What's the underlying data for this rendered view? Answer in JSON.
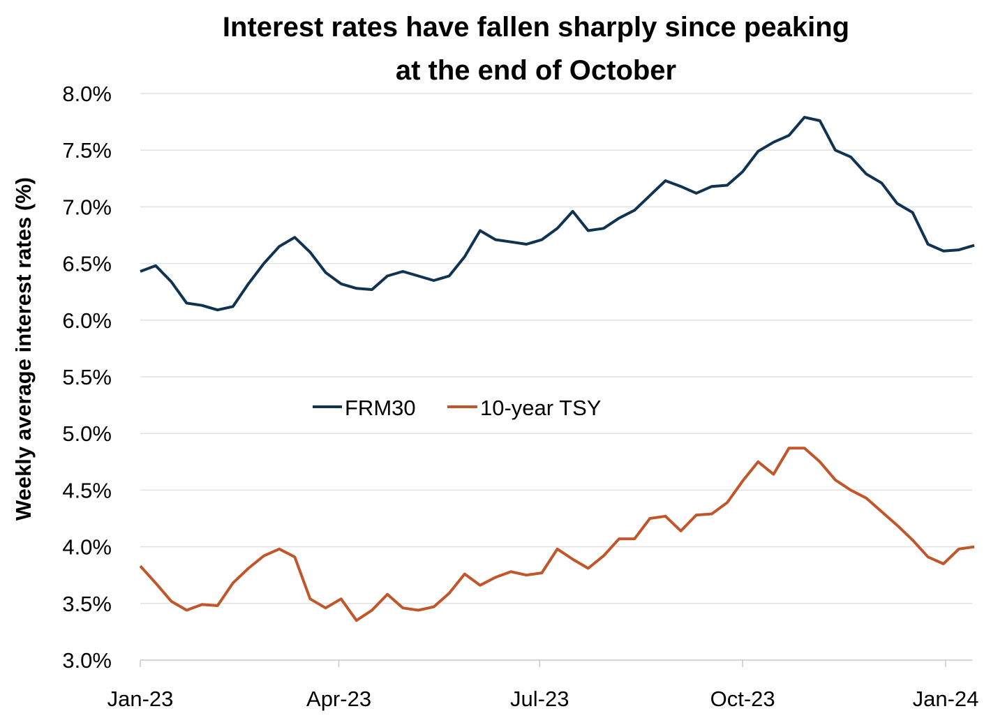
{
  "chart_data": {
    "type": "line",
    "title": [
      "Interest rates have fallen sharply since peaking",
      "at the end of October"
    ],
    "xlabel": "",
    "ylabel": "Weekly average interest rates (%)",
    "ylim": [
      3.0,
      8.0
    ],
    "yticks": [
      3.0,
      3.5,
      4.0,
      4.5,
      5.0,
      5.5,
      6.0,
      6.5,
      7.0,
      7.5,
      8.0
    ],
    "ytick_labels": [
      "3.0%",
      "3.5%",
      "4.0%",
      "4.5%",
      "5.0%",
      "5.5%",
      "6.0%",
      "6.5%",
      "7.0%",
      "7.5%",
      "8.0%"
    ],
    "x_unit": "days since 2023-01-01",
    "xlim": [
      0,
      384
    ],
    "xticks": [
      0,
      90,
      181,
      273,
      365
    ],
    "xtick_labels": [
      "Jan-23",
      "Apr-23",
      "Jul-23",
      "Oct-23",
      "Jan-24"
    ],
    "x_step_days": 7,
    "grid": "horizontal",
    "legend_position": "center",
    "series": [
      {
        "name": "FRM30",
        "color": "#0f3350",
        "values": [
          6.43,
          6.48,
          6.34,
          6.15,
          6.13,
          6.09,
          6.12,
          6.32,
          6.5,
          6.65,
          6.73,
          6.6,
          6.42,
          6.32,
          6.28,
          6.27,
          6.39,
          6.43,
          6.39,
          6.35,
          6.39,
          6.56,
          6.79,
          6.71,
          6.69,
          6.67,
          6.71,
          6.81,
          6.96,
          6.79,
          6.81,
          6.9,
          6.97,
          7.1,
          7.23,
          7.18,
          7.12,
          7.18,
          7.19,
          7.31,
          7.49,
          7.57,
          7.63,
          7.79,
          7.76,
          7.5,
          7.44,
          7.29,
          7.21,
          7.03,
          6.95,
          6.67,
          6.61,
          6.62,
          6.66
        ]
      },
      {
        "name": "10-year TSY",
        "color": "#c0562a",
        "values": [
          3.83,
          3.68,
          3.52,
          3.44,
          3.49,
          3.48,
          3.68,
          3.81,
          3.92,
          3.98,
          3.91,
          3.54,
          3.46,
          3.54,
          3.35,
          3.44,
          3.58,
          3.46,
          3.44,
          3.47,
          3.59,
          3.76,
          3.66,
          3.73,
          3.78,
          3.75,
          3.77,
          3.98,
          3.89,
          3.81,
          3.92,
          4.07,
          4.07,
          4.25,
          4.27,
          4.14,
          4.28,
          4.29,
          4.39,
          4.58,
          4.75,
          4.64,
          4.87,
          4.87,
          4.75,
          4.59,
          4.5,
          4.43,
          4.31,
          4.19,
          4.06,
          3.91,
          3.85,
          3.98,
          4.0
        ]
      }
    ]
  }
}
